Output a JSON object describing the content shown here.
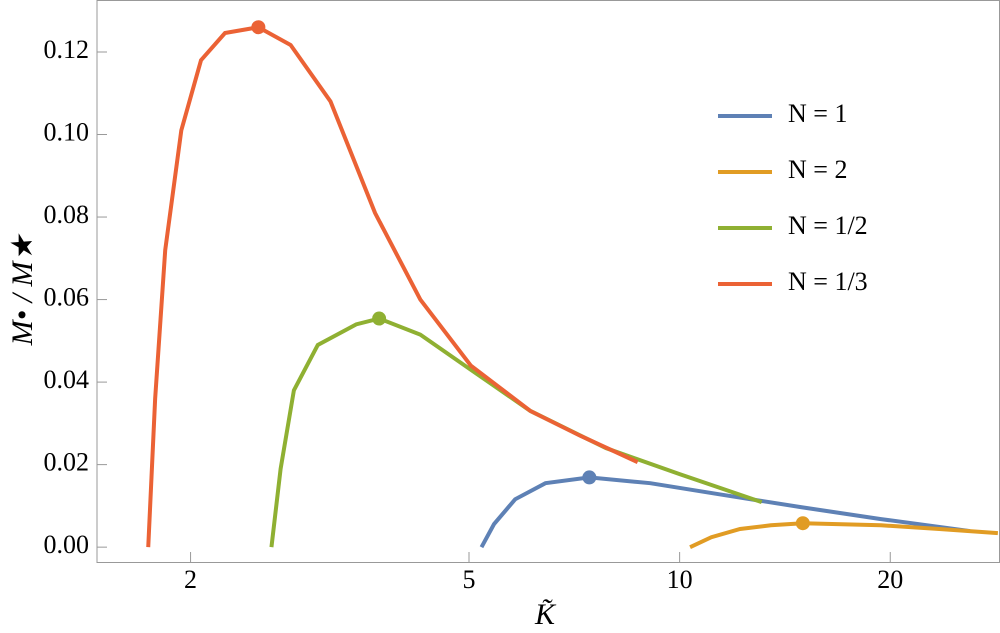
{
  "chart_data": {
    "type": "line",
    "xlabel": "K̃",
    "ylabel": "M• / M★",
    "xscale": "log",
    "xlim": [
      1.47,
      28.7
    ],
    "ylim": [
      -0.0036,
      0.1326
    ],
    "xticks": [
      2,
      5,
      10,
      20
    ],
    "yticks": [
      {
        "value": 0,
        "label": "0.00"
      },
      {
        "value": 0.02,
        "label": "0.02"
      },
      {
        "value": 0.04,
        "label": "0.04"
      },
      {
        "value": 0.06,
        "label": "0.06"
      },
      {
        "value": 0.08,
        "label": "0.08"
      },
      {
        "value": 0.1,
        "label": "0.10"
      },
      {
        "value": 0.12,
        "label": "0.12"
      }
    ],
    "legend": "upper right",
    "series": [
      {
        "name": "N = 1",
        "color": "#5e81b5",
        "x": [
          5.21,
          5.43,
          5.82,
          6.43,
          7.43,
          9.08,
          11.4,
          14.9,
          19.4,
          26.0
        ],
        "values": [
          0,
          0.0056,
          0.0116,
          0.0155,
          0.0169,
          0.0155,
          0.0128,
          0.0097,
          0.0068,
          0.0039
        ],
        "peak": {
          "x": 7.43,
          "y": 0.0169
        }
      },
      {
        "name": "N = 2",
        "color": "#e19c24",
        "x": [
          10.35,
          11.1,
          12.2,
          13.5,
          15.0,
          19.4,
          23.5,
          28.5
        ],
        "values": [
          0,
          0.0024,
          0.0044,
          0.0053,
          0.0058,
          0.0053,
          0.0044,
          0.0034
        ],
        "peak": {
          "x": 15.0,
          "y": 0.0058
        }
      },
      {
        "name": "N = 1/2",
        "color": "#8fb032",
        "x": [
          2.61,
          2.69,
          2.81,
          3.04,
          3.45,
          3.72,
          4.26,
          5.03,
          6.12,
          7.85,
          10.0,
          13.1
        ],
        "values": [
          0,
          0.019,
          0.038,
          0.049,
          0.054,
          0.0554,
          0.0515,
          0.043,
          0.033,
          0.024,
          0.0177,
          0.0109
        ],
        "peak": {
          "x": 3.72,
          "y": 0.0554
        }
      },
      {
        "name": "N = 1/3",
        "color": "#eb6235",
        "x": [
          1.74,
          1.78,
          1.84,
          1.94,
          2.07,
          2.24,
          2.5,
          2.78,
          3.17,
          3.67,
          4.26,
          5.03,
          6.12,
          7.21,
          8.71
        ],
        "values": [
          0,
          0.036,
          0.072,
          0.101,
          0.118,
          0.1246,
          0.126,
          0.1217,
          0.108,
          0.081,
          0.06,
          0.044,
          0.033,
          0.027,
          0.0206
        ],
        "peak": {
          "x": 2.5,
          "y": 0.126
        }
      }
    ]
  }
}
